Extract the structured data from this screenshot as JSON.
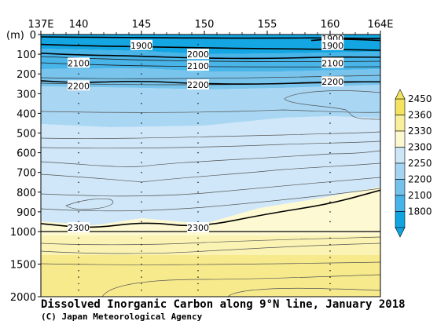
{
  "chart_data": {
    "type": "heatmap",
    "title": "Dissolved Inorganic Carbon along 9°N line, January 2018",
    "credit": "(C) Japan Meteorological Agency",
    "x_axis": {
      "range": [
        137,
        164
      ],
      "ticks": [
        {
          "value": 137,
          "label": "137E"
        },
        {
          "value": 140,
          "label": "140"
        },
        {
          "value": 145,
          "label": "145"
        },
        {
          "value": 150,
          "label": "150"
        },
        {
          "value": 155,
          "label": "155"
        },
        {
          "value": 160,
          "label": "160"
        },
        {
          "value": 164,
          "label": "164E"
        }
      ]
    },
    "y_axis": {
      "unit_label": "(m)",
      "range": [
        0,
        2000
      ],
      "ticks": [
        0,
        100,
        200,
        300,
        400,
        500,
        600,
        700,
        800,
        900,
        1000,
        1500,
        2000
      ]
    },
    "colorbar": {
      "levels": [
        1800,
        2100,
        2200,
        2250,
        2300,
        2330,
        2360,
        2450
      ],
      "colors": [
        "#10a4e0",
        "#46b4ea",
        "#74c2ec",
        "#a4d4f2",
        "#cce6f8",
        "#fcf8d0",
        "#f9ef9b",
        "#f3e35e"
      ]
    },
    "sample_stations": [
      140,
      145,
      149.5,
      160
    ],
    "contours": [
      {
        "label": "1900",
        "points": [
          [
            137,
            12
          ],
          [
            143,
            15
          ],
          [
            146.5,
            16
          ],
          [
            150,
            18
          ],
          [
            155,
            18
          ],
          [
            159.5,
            17
          ],
          [
            164,
            20
          ]
        ]
      },
      {
        "label": "1900",
        "points": [
          [
            158.5,
            30
          ],
          [
            160.2,
            22
          ],
          [
            162.5,
            26
          ],
          [
            164,
            30
          ]
        ]
      },
      {
        "label": "2000",
        "points": [
          [
            137,
            50
          ],
          [
            141,
            58
          ],
          [
            145.5,
            62
          ],
          [
            150,
            68
          ],
          [
            155,
            72
          ],
          [
            160,
            75
          ],
          [
            164,
            80
          ]
        ]
      },
      {
        "label": "2100",
        "points": [
          [
            137,
            95
          ],
          [
            140,
            104
          ],
          [
            144,
            108
          ],
          [
            149.5,
            120
          ],
          [
            155,
            122
          ],
          [
            160,
            114
          ],
          [
            164,
            115
          ]
        ]
      },
      {
        "label": "2200",
        "points": [
          [
            137,
            235
          ],
          [
            140,
            245
          ],
          [
            145,
            235
          ],
          [
            149.5,
            250
          ],
          [
            155,
            252
          ],
          [
            160,
            240
          ],
          [
            164,
            240
          ]
        ]
      },
      {
        "label": "2300",
        "points": [
          [
            137,
            960
          ],
          [
            141,
            985
          ],
          [
            145.3,
            950
          ],
          [
            149.5,
            980
          ],
          [
            155,
            910
          ],
          [
            160,
            860
          ],
          [
            164,
            790
          ]
        ]
      },
      {
        "label": "",
        "points": [
          [
            137,
            1000
          ],
          [
            164,
            1000
          ]
        ]
      }
    ],
    "contour_labels": [
      {
        "text": "1900",
        "x": 145,
        "y": 55
      },
      {
        "text": "1900",
        "x": 160.2,
        "y": 20
      },
      {
        "text": "1900",
        "x": 160.2,
        "y": 55
      },
      {
        "text": "2000",
        "x": 149.5,
        "y": 100
      },
      {
        "text": "2100",
        "x": 140,
        "y": 145
      },
      {
        "text": "2100",
        "x": 149.5,
        "y": 160
      },
      {
        "text": "2100",
        "x": 160.2,
        "y": 145
      },
      {
        "text": "2200",
        "x": 140,
        "y": 260
      },
      {
        "text": "2200",
        "x": 149.5,
        "y": 255
      },
      {
        "text": "2200",
        "x": 160.2,
        "y": 240
      },
      {
        "text": "2300",
        "x": 140,
        "y": 980
      },
      {
        "text": "2300",
        "x": 149.5,
        "y": 980
      }
    ],
    "grid": false
  }
}
